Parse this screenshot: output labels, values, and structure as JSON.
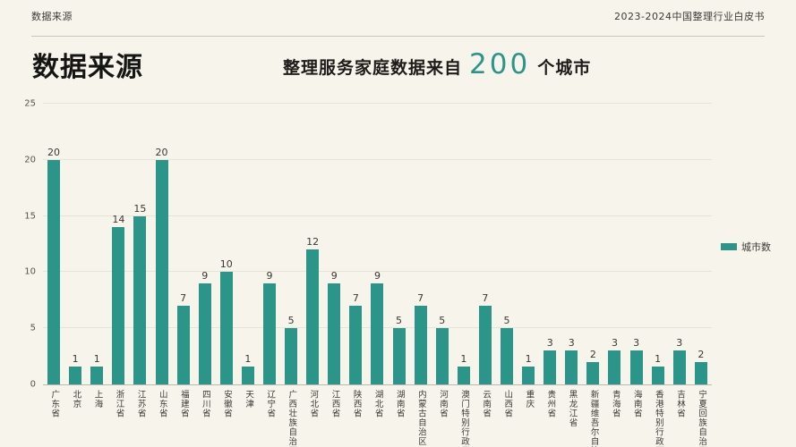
{
  "header": {
    "breadcrumb": "数据来源",
    "source": "2023-2024中国整理行业白皮书"
  },
  "title": "数据来源",
  "subtitle": {
    "prefix": "整理服务家庭数据来自",
    "highlight": "200",
    "suffix": "个城市"
  },
  "colors": {
    "background": "#f6f4eb",
    "bar": "#2c958a",
    "accent": "#2c958a",
    "grid": "#e6e4da",
    "text_dark": "#151513",
    "text_secondary": "#3c3a36"
  },
  "chart_data": {
    "type": "bar",
    "title": "",
    "xlabel": "",
    "ylabel": "",
    "legend": "城市数",
    "legend_position": "right",
    "grid": true,
    "ylim": [
      0,
      25
    ],
    "yticks": [
      0,
      5,
      10,
      15,
      20,
      25
    ],
    "bar_labels_shown": true,
    "categories": [
      "广东省",
      "北京",
      "上海",
      "浙江省",
      "江苏省",
      "山东省",
      "福建省",
      "四川省",
      "安徽省",
      "天津",
      "辽宁省",
      "广西壮族自治区",
      "河北省",
      "江西省",
      "陕西省",
      "湖北省",
      "湖南省",
      "内蒙古自治区",
      "河南省",
      "澳门特别行政区",
      "云南省",
      "山西省",
      "重庆",
      "贵州省",
      "黑龙江省",
      "新疆维吾尔自治区",
      "青海省",
      "海南省",
      "香港特别行政区",
      "吉林省",
      "宁夏回族自治区"
    ],
    "values": [
      20,
      1,
      1,
      14,
      15,
      20,
      7,
      9,
      10,
      1,
      9,
      5,
      12,
      9,
      7,
      9,
      5,
      7,
      5,
      1,
      7,
      5,
      1,
      3,
      3,
      2,
      3,
      3,
      1,
      3,
      2
    ],
    "series_name": "城市数",
    "total": 200
  }
}
